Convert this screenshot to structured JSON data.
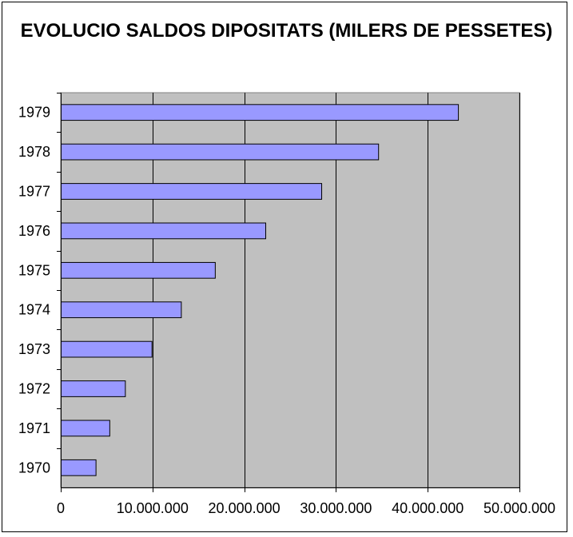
{
  "chart_data": {
    "type": "bar",
    "orientation": "horizontal",
    "title": "EVOLUCIO SALDOS DIPOSITATS (MILERS DE PESSETES)",
    "categories": [
      "1970",
      "1971",
      "1972",
      "1973",
      "1974",
      "1975",
      "1976",
      "1977",
      "1978",
      "1979"
    ],
    "values": [
      3800000,
      5300000,
      7000000,
      9900000,
      13100000,
      16800000,
      22300000,
      28400000,
      34600000,
      43300000
    ],
    "xlim": [
      0,
      50000000
    ],
    "x_ticks": [
      0,
      10000000,
      20000000,
      30000000,
      40000000,
      50000000
    ],
    "x_tick_labels": [
      "0",
      "10.000.000",
      "20.000.000",
      "30.000.000",
      "40.000.000",
      "50.000.000"
    ],
    "xlabel": "",
    "ylabel": "",
    "grid": "vertical major gridlines",
    "legend": "none",
    "colors": {
      "bar_fill": "#9999ff",
      "bar_stroke": "#000000",
      "plot_background": "#c0c0c0",
      "gridline": "#000000"
    }
  }
}
